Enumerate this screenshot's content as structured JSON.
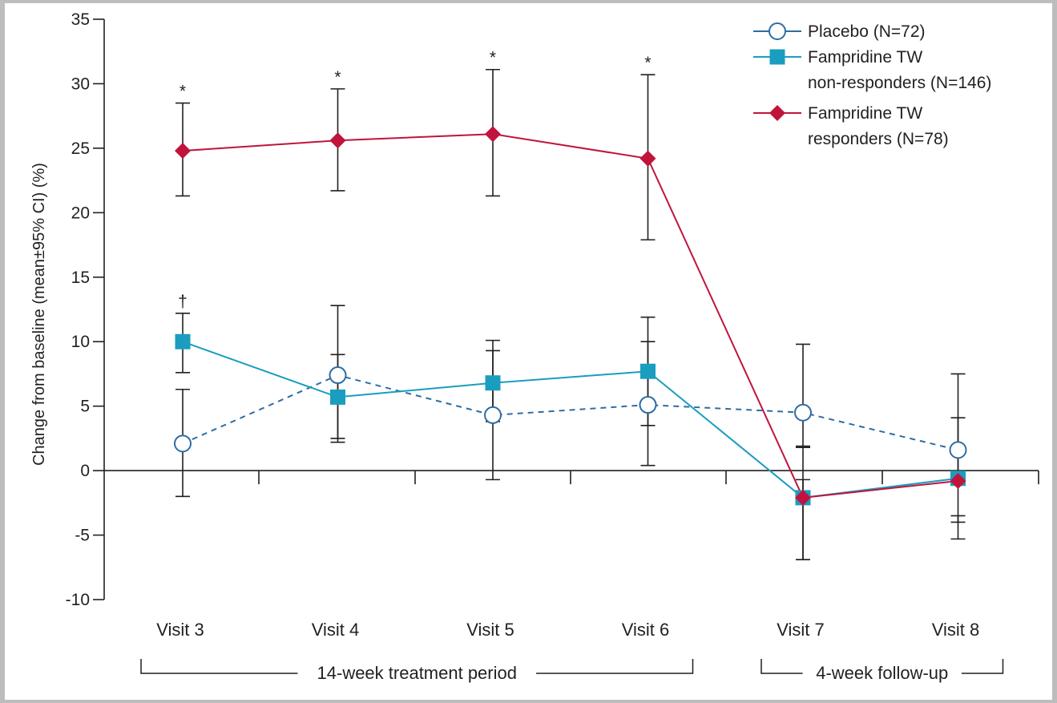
{
  "chart_data": {
    "type": "line",
    "categories": [
      "Visit 3",
      "Visit 4",
      "Visit 5",
      "Visit 6",
      "Visit 7",
      "Visit 8"
    ],
    "ylabel": "Change from baseline (mean±95% CI) (%)",
    "ylim": [
      -10,
      35
    ],
    "yticks": [
      -10,
      -5,
      0,
      5,
      10,
      15,
      20,
      25,
      30,
      35
    ],
    "grid": false,
    "legend_position": "top-right",
    "series": [
      {
        "name": "Placebo (N=72)",
        "legend_lines": [
          "Placebo (N=72)"
        ],
        "color": "#2e6da4",
        "marker": "open-circle",
        "dashed": true,
        "values": [
          2.1,
          7.4,
          4.3,
          5.1,
          4.5,
          1.6
        ],
        "ci_low": [
          -2.0,
          2.2,
          -0.7,
          0.4,
          1.8,
          -0.4
        ],
        "ci_high": [
          6.3,
          12.8,
          9.3,
          10.0,
          9.8,
          4.1
        ]
      },
      {
        "name": "Fampridine TW non-responders (N=146)",
        "legend_lines": [
          "Fampridine TW",
          "non-responders (N=146)"
        ],
        "color": "#1a9dbf",
        "marker": "square",
        "dashed": false,
        "values": [
          10.0,
          5.7,
          6.8,
          7.7,
          -2.1,
          -0.6
        ],
        "ci_low": [
          7.6,
          2.5,
          3.8,
          3.5,
          -6.9,
          -4.0
        ],
        "ci_high": [
          12.2,
          9.0,
          10.1,
          11.9,
          -0.7,
          -3.5
        ]
      },
      {
        "name": "Fampridine TW responders (N=78)",
        "legend_lines": [
          "Fampridine TW",
          "responders (N=78)"
        ],
        "color": "#c0143c",
        "marker": "diamond",
        "dashed": false,
        "values": [
          24.8,
          25.6,
          26.1,
          24.2,
          -2.1,
          -0.8
        ],
        "ci_low": [
          21.3,
          21.7,
          21.3,
          17.9,
          -6.9,
          -5.3
        ],
        "ci_high": [
          28.5,
          29.6,
          31.1,
          30.7,
          1.9,
          7.5
        ]
      }
    ],
    "annotations": [
      {
        "category": "Visit 3",
        "symbol": "*",
        "above": 28.5
      },
      {
        "category": "Visit 4",
        "symbol": "*",
        "above": 29.6
      },
      {
        "category": "Visit 5",
        "symbol": "*",
        "above": 31.1
      },
      {
        "category": "Visit 6",
        "symbol": "*",
        "above": 30.7
      },
      {
        "category": "Visit 3",
        "symbol": "†",
        "above": 12.2
      }
    ],
    "periods": [
      {
        "label": "14-week treatment period",
        "from": "Visit 3",
        "to": "Visit 6"
      },
      {
        "label": "4-week follow-up",
        "from": "Visit 7",
        "to": "Visit 8"
      }
    ]
  }
}
